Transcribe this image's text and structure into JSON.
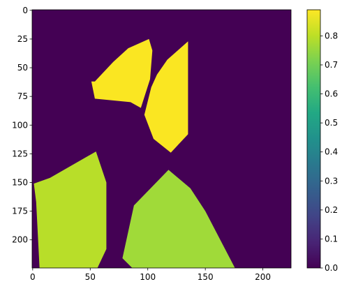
{
  "chart_data": {
    "type": "heatmap",
    "title": "",
    "xlabel": "",
    "ylabel": "",
    "image_size": [
      225,
      225
    ],
    "xlim": [
      -0.5,
      224.5
    ],
    "ylim": [
      224.5,
      -0.5
    ],
    "background_value": 0.0,
    "x_ticks": [
      0,
      50,
      100,
      150,
      200
    ],
    "y_ticks": [
      0,
      25,
      50,
      75,
      100,
      125,
      150,
      175,
      200
    ],
    "colormap": "viridis",
    "colorbar": {
      "vmin": 0.0,
      "vmax": 0.89,
      "ticks": [
        0.0,
        0.1,
        0.2,
        0.3,
        0.4,
        0.5,
        0.6,
        0.7,
        0.8
      ]
    },
    "regions": [
      {
        "value": 0.89,
        "color": "#fae622",
        "polygon": [
          [
            101,
            25
          ],
          [
            104,
            35
          ],
          [
            102,
            60
          ],
          [
            94,
            85
          ],
          [
            85,
            80
          ],
          [
            54,
            77
          ],
          [
            51,
            62
          ],
          [
            54,
            62
          ],
          [
            70,
            45
          ],
          [
            83,
            33
          ]
        ]
      },
      {
        "value": 0.89,
        "color": "#fae622",
        "polygon": [
          [
            135,
            27
          ],
          [
            135,
            108
          ],
          [
            120,
            124
          ],
          [
            105,
            112
          ],
          [
            97,
            91
          ],
          [
            103,
            67
          ],
          [
            108,
            56
          ],
          [
            117,
            43
          ]
        ]
      },
      {
        "value": 0.82,
        "color": "#b8de29",
        "polygon": [
          [
            55,
            123
          ],
          [
            64,
            150
          ],
          [
            64,
            208
          ],
          [
            56,
            225
          ],
          [
            6,
            225
          ],
          [
            3,
            167
          ],
          [
            1,
            151
          ],
          [
            15,
            146
          ]
        ]
      },
      {
        "value": 0.74,
        "color": "#a0da39",
        "polygon": [
          [
            118,
            139
          ],
          [
            137,
            155
          ],
          [
            150,
            175
          ],
          [
            163,
            200
          ],
          [
            176,
            225
          ],
          [
            87,
            225
          ],
          [
            78,
            216
          ],
          [
            88,
            170
          ]
        ]
      }
    ]
  }
}
